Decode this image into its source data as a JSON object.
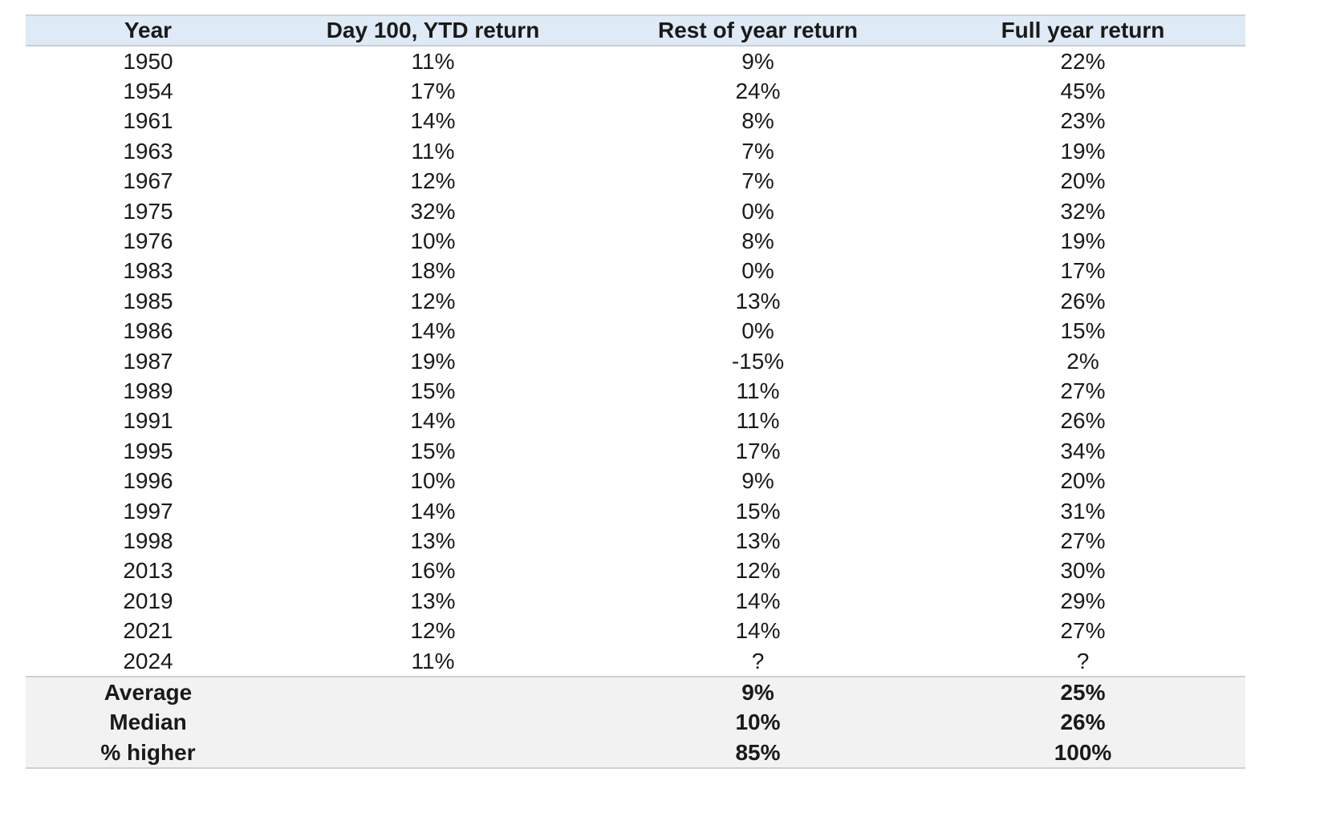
{
  "chart_data": {
    "type": "table",
    "columns": [
      "Year",
      "Day 100, YTD return",
      "Rest of year return",
      "Full year return"
    ],
    "rows": [
      [
        "1950",
        "11%",
        "9%",
        "22%"
      ],
      [
        "1954",
        "17%",
        "24%",
        "45%"
      ],
      [
        "1961",
        "14%",
        "8%",
        "23%"
      ],
      [
        "1963",
        "11%",
        "7%",
        "19%"
      ],
      [
        "1967",
        "12%",
        "7%",
        "20%"
      ],
      [
        "1975",
        "32%",
        "0%",
        "32%"
      ],
      [
        "1976",
        "10%",
        "8%",
        "19%"
      ],
      [
        "1983",
        "18%",
        "0%",
        "17%"
      ],
      [
        "1985",
        "12%",
        "13%",
        "26%"
      ],
      [
        "1986",
        "14%",
        "0%",
        "15%"
      ],
      [
        "1987",
        "19%",
        "-15%",
        "2%"
      ],
      [
        "1989",
        "15%",
        "11%",
        "27%"
      ],
      [
        "1991",
        "14%",
        "11%",
        "26%"
      ],
      [
        "1995",
        "15%",
        "17%",
        "34%"
      ],
      [
        "1996",
        "10%",
        "9%",
        "20%"
      ],
      [
        "1997",
        "14%",
        "15%",
        "31%"
      ],
      [
        "1998",
        "13%",
        "13%",
        "27%"
      ],
      [
        "2013",
        "16%",
        "12%",
        "30%"
      ],
      [
        "2019",
        "13%",
        "14%",
        "29%"
      ],
      [
        "2021",
        "12%",
        "14%",
        "27%"
      ],
      [
        "2024",
        "11%",
        "?",
        "?"
      ]
    ],
    "summary": [
      [
        "Average",
        "",
        "9%",
        "25%"
      ],
      [
        "Median",
        "",
        "10%",
        "26%"
      ],
      [
        "% higher",
        "",
        "85%",
        "100%"
      ]
    ]
  },
  "colors": {
    "header_background": "#deeaf5",
    "summary_background": "#f2f2f2",
    "text": "#1a1a1a"
  }
}
